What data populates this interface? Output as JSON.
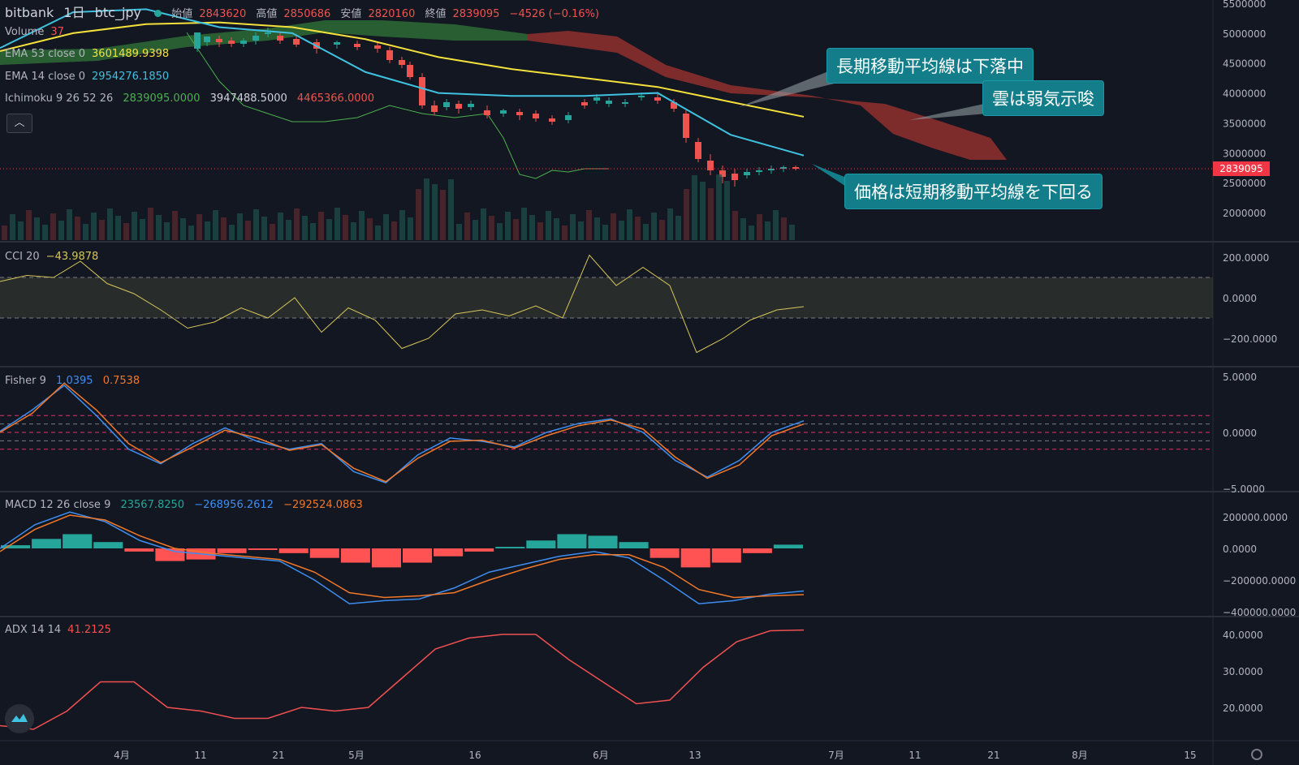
{
  "header": {
    "exchange": "bitbank",
    "interval": "1日",
    "symbol": "btc_jpy",
    "open_label": "始値",
    "open": "2843620",
    "high_label": "高値",
    "high": "2850686",
    "low_label": "安値",
    "low": "2820160",
    "close_label": "終値",
    "close": "2839095",
    "change": "−4526 (−0.16%)"
  },
  "legends": {
    "volume": {
      "name": "Volume",
      "value": "37"
    },
    "ema53": {
      "name": "EMA 53 close 0",
      "value": "3601489.9398"
    },
    "ema14": {
      "name": "EMA 14 close 0",
      "value": "2954276.1850"
    },
    "ichimoku": {
      "name": "Ichimoku 9 26 52 26",
      "v1": "2839095.0000",
      "v2": "3947488.5000",
      "v3": "4465366.0000"
    },
    "cci": {
      "name": "CCI 20",
      "value": "−43.9878"
    },
    "fisher": {
      "name": "Fisher 9",
      "v1": "1.0395",
      "v2": "0.7538"
    },
    "macd": {
      "name": "MACD 12 26 close 9",
      "v1": "23567.8250",
      "v2": "−268956.2612",
      "v3": "−292524.0863"
    },
    "adx": {
      "name": "ADX 14 14",
      "value": "41.2125"
    }
  },
  "callouts": {
    "long_ma": "長期移動平均線は下落中",
    "cloud": "雲は弱気示唆",
    "price": "価格は短期移動平均線を下回る"
  },
  "price_tag": "2839095",
  "colors": {
    "up": "#26a69a",
    "down": "#ef5350",
    "ema53": "#f5e13c",
    "ema14": "#3fc1e0",
    "cci": "#d6c55a",
    "fisher1": "#3d8ef0",
    "fisher2": "#f0782a",
    "adx": "#f05050"
  },
  "chart_data": [
    {
      "type": "line",
      "pane": "price",
      "x_labels": [
        "4月",
        "11",
        "21",
        "5月",
        "16",
        "6月",
        "13",
        "7月",
        "11",
        "21",
        "8月",
        "15"
      ],
      "y_ticks": [
        "5500000",
        "5000000",
        "4500000",
        "4000000",
        "3500000",
        "3000000",
        "2500000",
        "2000000"
      ],
      "series": [
        {
          "name": "EMA 53 close 0",
          "values": [
            4700000,
            5000000,
            5150000,
            5180000,
            5100000,
            4900000,
            4600000,
            4400000,
            4250000,
            4100000,
            3850000,
            3601490
          ]
        },
        {
          "name": "EMA 14 close 0",
          "values": [
            4750000,
            5350000,
            5400000,
            5100000,
            5000000,
            4350000,
            4000000,
            3950000,
            3950000,
            4000000,
            3300000,
            2954276
          ]
        }
      ]
    },
    {
      "type": "line",
      "pane": "cci",
      "y_ticks": [
        "200.0000",
        "0.0000",
        "−200.0000"
      ],
      "series": [
        {
          "name": "CCI 20",
          "values": [
            80,
            110,
            100,
            180,
            70,
            20,
            -60,
            -150,
            -120,
            -50,
            -100,
            0,
            -170,
            -50,
            -110,
            -250,
            -200,
            -80,
            -60,
            -90,
            -40,
            -100,
            210,
            60,
            150,
            60,
            -270,
            -200,
            -110,
            -60,
            -44
          ]
        }
      ]
    },
    {
      "type": "line",
      "pane": "fisher",
      "y_ticks": [
        "5.0000",
        "0.0000",
        "−5.0000"
      ],
      "series": [
        {
          "name": "Fisher",
          "values": [
            0.1,
            2.0,
            4.2,
            1.5,
            -1.5,
            -2.8,
            -1.0,
            0.4,
            -0.8,
            -1.5,
            -1.0,
            -3.5,
            -4.5,
            -2.0,
            -0.5,
            -0.8,
            -1.3,
            0.0,
            0.8,
            1.2,
            0.0,
            -2.5,
            -4.0,
            -2.5,
            0.0,
            1.04
          ]
        },
        {
          "name": "Trigger",
          "values": [
            0.0,
            1.7,
            4.4,
            2.0,
            -1.0,
            -2.7,
            -1.3,
            0.2,
            -0.5,
            -1.6,
            -1.1,
            -3.2,
            -4.4,
            -2.3,
            -0.8,
            -0.7,
            -1.4,
            -0.3,
            0.6,
            1.1,
            0.3,
            -2.2,
            -4.1,
            -2.9,
            -0.3,
            0.75
          ]
        }
      ]
    },
    {
      "type": "bar",
      "pane": "macd",
      "y_ticks": [
        "200000.0000",
        "0.0000",
        "−200000.0000",
        "−400000.0000"
      ],
      "series": [
        {
          "name": "Histogram",
          "values": [
            20000,
            60000,
            90000,
            40000,
            -20000,
            -80000,
            -70000,
            -30000,
            -10000,
            -30000,
            -60000,
            -90000,
            -120000,
            -90000,
            -50000,
            -20000,
            10000,
            50000,
            90000,
            80000,
            40000,
            -60000,
            -120000,
            -90000,
            -30000,
            23568
          ]
        },
        {
          "name": "MACD",
          "values": [
            0,
            150000,
            230000,
            170000,
            50000,
            -20000,
            -40000,
            -60000,
            -80000,
            -200000,
            -350000,
            -330000,
            -320000,
            -250000,
            -150000,
            -100000,
            -50000,
            -20000,
            -60000,
            -200000,
            -350000,
            -330000,
            -290000,
            -268956
          ]
        },
        {
          "name": "Signal",
          "values": [
            -20000,
            120000,
            210000,
            180000,
            80000,
            0,
            -30000,
            -50000,
            -70000,
            -150000,
            -280000,
            -310000,
            -300000,
            -280000,
            -200000,
            -130000,
            -70000,
            -40000,
            -40000,
            -120000,
            -260000,
            -310000,
            -300000,
            -292524
          ]
        }
      ]
    },
    {
      "type": "line",
      "pane": "adx",
      "y_ticks": [
        "40.0000",
        "30.0000",
        "20.0000"
      ],
      "series": [
        {
          "name": "ADX 14 14",
          "values": [
            15,
            14,
            19,
            27,
            27,
            20,
            19,
            17,
            17,
            20,
            19,
            20,
            28,
            36,
            39,
            40,
            40,
            33,
            27,
            21,
            22,
            31,
            38,
            41,
            41.2
          ]
        }
      ]
    }
  ]
}
